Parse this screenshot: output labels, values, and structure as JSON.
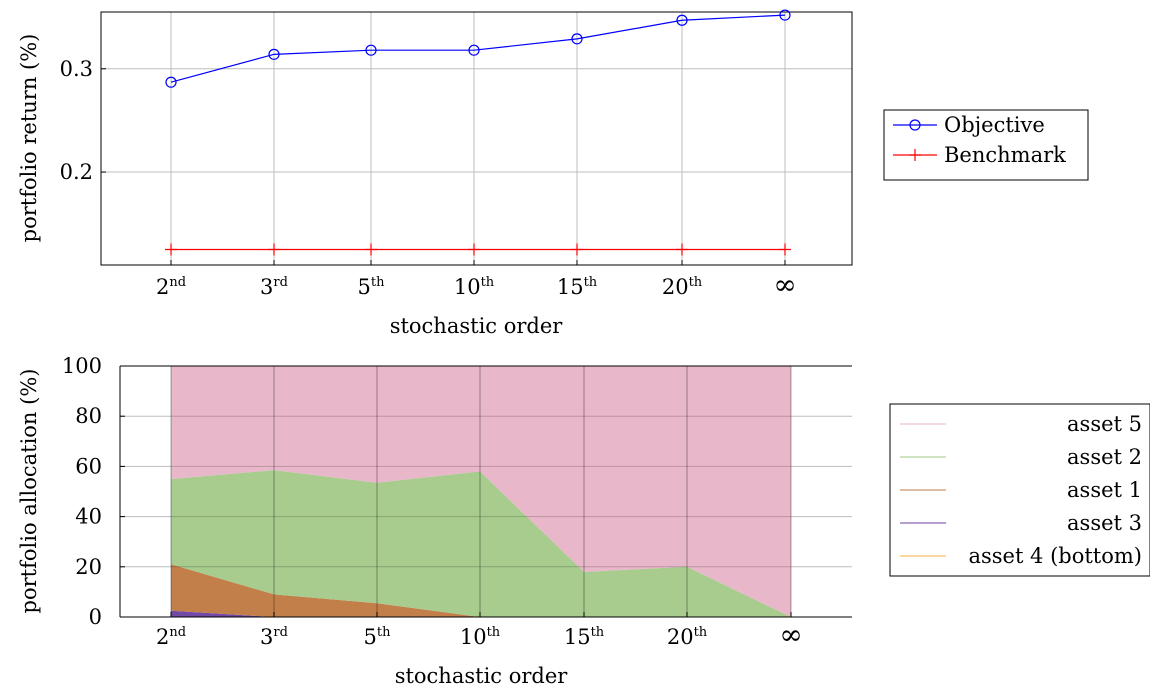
{
  "chart_data": [
    {
      "type": "line",
      "categories": [
        {
          "base": "2",
          "sup": "nd"
        },
        {
          "base": "3",
          "sup": "rd"
        },
        {
          "base": "5",
          "sup": "th"
        },
        {
          "base": "10",
          "sup": "th"
        },
        {
          "base": "15",
          "sup": "th"
        },
        {
          "base": "20",
          "sup": "th"
        },
        {
          "base": "∞",
          "sup": ""
        }
      ],
      "xlabel": "stochastic order",
      "ylabel": "portfolio return (%)",
      "ylim": [
        0.11,
        0.355
      ],
      "yticks": [
        {
          "value": 0.2,
          "label": "0.2"
        },
        {
          "value": 0.3,
          "label": "0.3"
        }
      ],
      "grid": true,
      "legend_position": "right",
      "series": [
        {
          "name": "Objective",
          "marker": "circle",
          "color": "#0000ff",
          "values": [
            0.287,
            0.314,
            0.318,
            0.318,
            0.329,
            0.347,
            0.352
          ]
        },
        {
          "name": "Benchmark",
          "marker": "plus",
          "color": "#ff0000",
          "values": [
            0.125,
            0.125,
            0.125,
            0.125,
            0.125,
            0.125,
            0.125
          ]
        }
      ]
    },
    {
      "type": "area",
      "stacked": true,
      "categories": [
        {
          "base": "2",
          "sup": "nd"
        },
        {
          "base": "3",
          "sup": "rd"
        },
        {
          "base": "5",
          "sup": "th"
        },
        {
          "base": "10",
          "sup": "th"
        },
        {
          "base": "15",
          "sup": "th"
        },
        {
          "base": "20",
          "sup": "th"
        },
        {
          "base": "∞",
          "sup": ""
        }
      ],
      "xlabel": "stochastic order",
      "ylabel": "portfolio allocation (%)",
      "ylim": [
        0,
        100
      ],
      "yticks": [
        {
          "value": 0,
          "label": "0"
        },
        {
          "value": 20,
          "label": "20"
        },
        {
          "value": 40,
          "label": "40"
        },
        {
          "value": 60,
          "label": "60"
        },
        {
          "value": 80,
          "label": "80"
        },
        {
          "value": 100,
          "label": "100"
        }
      ],
      "grid": true,
      "legend_position": "right",
      "series": [
        {
          "name": "asset 4 (bottom)",
          "color": "#f5b041",
          "values": [
            0,
            0,
            0,
            0,
            0,
            0,
            0
          ]
        },
        {
          "name": "asset 3",
          "color": "#6a3fa0",
          "values": [
            2.5,
            0,
            0,
            0,
            0,
            0,
            0
          ]
        },
        {
          "name": "asset 1",
          "color": "#c07840",
          "values": [
            18.5,
            9,
            5.5,
            0,
            0,
            0,
            0
          ]
        },
        {
          "name": "asset 2",
          "color": "#a2c987",
          "values": [
            34,
            49.5,
            48,
            58,
            18,
            20,
            0
          ]
        },
        {
          "name": "asset 5",
          "color": "#e8b3c7",
          "values": [
            45,
            41.5,
            46.5,
            42,
            82,
            80,
            100
          ]
        }
      ],
      "legend_order": [
        "asset 5",
        "asset 2",
        "asset 1",
        "asset 3",
        "asset 4 (bottom)"
      ]
    }
  ]
}
